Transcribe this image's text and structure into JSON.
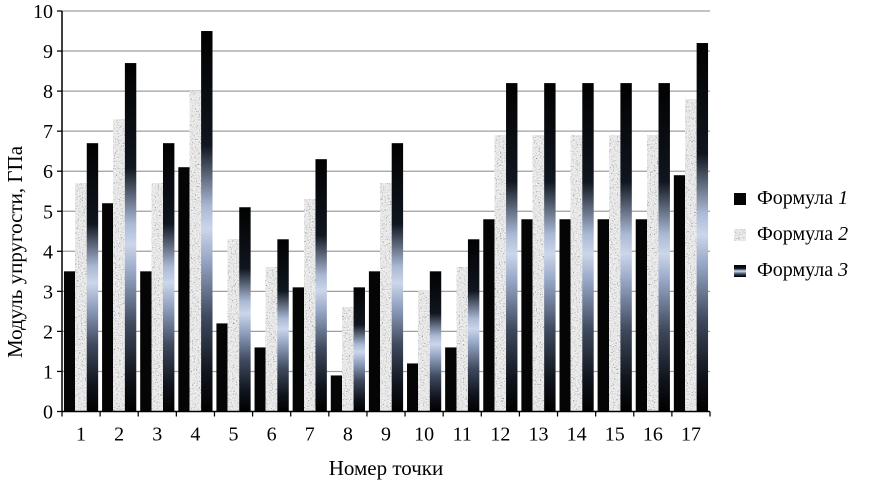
{
  "chart_data": {
    "type": "bar",
    "title": "",
    "categories": [
      "1",
      "2",
      "3",
      "4",
      "5",
      "6",
      "7",
      "8",
      "9",
      "10",
      "11",
      "12",
      "13",
      "14",
      "15",
      "16",
      "17"
    ],
    "series": [
      {
        "name": "Формула 1",
        "style": "solid-black",
        "values": [
          3.5,
          5.2,
          3.5,
          6.1,
          2.2,
          1.6,
          3.1,
          0.9,
          3.5,
          1.2,
          1.6,
          4.8,
          4.8,
          4.8,
          4.8,
          4.8,
          5.9
        ]
      },
      {
        "name": "Формула 2",
        "style": "granite-speckle",
        "values": [
          5.7,
          7.3,
          5.7,
          8.0,
          4.3,
          3.6,
          5.3,
          2.6,
          5.7,
          3.0,
          3.6,
          6.9,
          6.9,
          6.9,
          6.9,
          6.9,
          7.8
        ]
      },
      {
        "name": "Формула 3",
        "style": "metallic-gradient",
        "values": [
          6.7,
          8.7,
          6.7,
          9.5,
          5.1,
          4.3,
          6.3,
          3.1,
          6.7,
          3.5,
          4.3,
          8.2,
          8.2,
          8.2,
          8.2,
          8.2,
          9.2
        ]
      }
    ],
    "xlabel": "Номер точки",
    "ylabel": "Модуль упругости, ГПа",
    "ylim": [
      0,
      10
    ],
    "yticks": [
      0,
      1,
      2,
      3,
      4,
      5,
      6,
      7,
      8,
      9,
      10
    ],
    "grid": true,
    "legend_position": "right"
  },
  "legend": {
    "items": [
      {
        "label": "Формула",
        "number": "1",
        "marker": "black-square"
      },
      {
        "label": "Формула",
        "number": "2",
        "marker": "speckled-square"
      },
      {
        "label": "Формула",
        "number": "3",
        "marker": "gradient-square"
      }
    ]
  },
  "colors": {
    "background": "#ffffff",
    "axis": "#000000",
    "gridline": "#9f9f9f",
    "series1": "#050505",
    "series2_base": "#d9d9d9",
    "series3_light": "#ccd6ea",
    "series3_dark": "#000000"
  }
}
